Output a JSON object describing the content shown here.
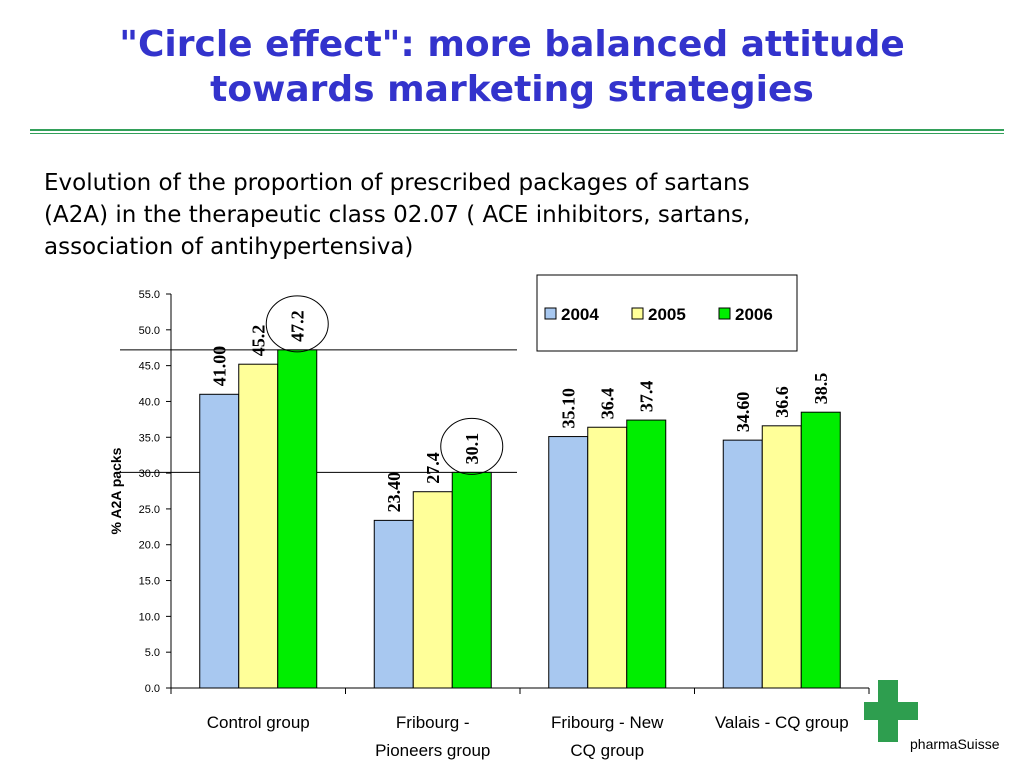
{
  "slide": {
    "title_line1": "\"Circle effect\": more balanced attitude",
    "title_line2": "towards marketing strategies",
    "subtitle_line1": "Evolution of the proportion of prescribed packages of sartans",
    "subtitle_line2": "(A2A) in the therapeutic class 02.07 ( ACE inhibitors, sartans,",
    "subtitle_line3": "association of antihypertensiva)"
  },
  "logo": {
    "text": "pharmaSuisse",
    "icon": "green-cross-logo",
    "color": "#2e9e4f"
  },
  "colors": {
    "title": "#3333cc",
    "rule": "#33a05a"
  },
  "chart_data": {
    "type": "bar",
    "title": "",
    "xlabel": "",
    "ylabel": "% A2A packs",
    "ylim": [
      0,
      55
    ],
    "y_ticks": [
      "0.0",
      "5.0",
      "10.0",
      "15.0",
      "20.0",
      "25.0",
      "30.0",
      "35.0",
      "40.0",
      "45.0",
      "50.0",
      "55.0"
    ],
    "categories": [
      [
        "Control group"
      ],
      [
        "Fribourg -",
        "Pioneers group"
      ],
      [
        "Fribourg - New",
        "CQ group"
      ],
      [
        "Valais - CQ group"
      ]
    ],
    "series": [
      {
        "name": "2004",
        "color": "#a8c8f0",
        "values": [
          41.0,
          23.4,
          35.1,
          34.6
        ],
        "labels": [
          "41.00",
          "23.40",
          "35.10",
          "34.60"
        ]
      },
      {
        "name": "2005",
        "color": "#ffff99",
        "values": [
          45.2,
          27.4,
          36.4,
          36.6
        ],
        "labels": [
          "45.2",
          "27.4",
          "36.4",
          "36.6"
        ]
      },
      {
        "name": "2006",
        "color": "#00ee00",
        "values": [
          47.2,
          30.1,
          37.4,
          38.5
        ],
        "labels": [
          "47.2",
          "30.1",
          "37.4",
          "38.5"
        ]
      }
    ],
    "reference_lines": [
      47.2,
      30.1
    ],
    "circled": [
      [
        0,
        2
      ],
      [
        1,
        2
      ]
    ],
    "legend": "top-right",
    "grid": false
  }
}
